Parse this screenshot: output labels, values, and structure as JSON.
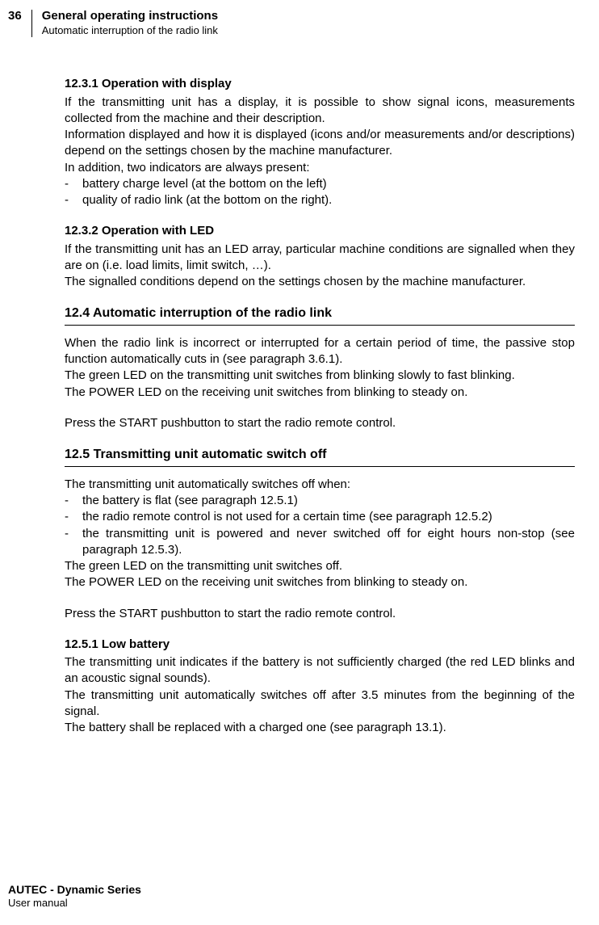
{
  "header": {
    "page_number": "36",
    "title": "General operating instructions",
    "subtitle": "Automatic interruption of the radio link"
  },
  "sections": {
    "s1": {
      "heading": "12.3.1 Operation with display",
      "p1": "If the transmitting unit has a display, it is possible to show signal icons, measurements collected from the machine and their description.",
      "p2": "Information displayed and how it is displayed (icons and/or measurements and/or descriptions) depend on the settings chosen by the machine manufacturer.",
      "p3": "In addition, two indicators are always present:",
      "li1": "battery charge level (at the bottom on the left)",
      "li2": "quality of radio link (at the bottom on the right)."
    },
    "s2": {
      "heading": "12.3.2 Operation with LED",
      "p1": "If the transmitting unit has an LED array, particular machine conditions are signalled when they are on (i.e. load limits, limit switch, …).",
      "p2": "The signalled conditions depend on the settings chosen by the machine manufacturer."
    },
    "s3": {
      "heading": "12.4 Automatic interruption of the radio link",
      "p1": "When the radio link is incorrect or interrupted for a certain period of time, the passive stop function automatically cuts in (see paragraph 3.6.1).",
      "p2": "The green LED on the transmitting unit switches from blinking slowly to fast blinking.",
      "p3": "The POWER LED on the receiving unit switches from blinking to steady on.",
      "p4": "Press the START pushbutton to start the radio remote control."
    },
    "s4": {
      "heading": "12.5 Transmitting unit automatic switch off",
      "p1": "The transmitting unit automatically switches off when:",
      "li1": "the battery is flat (see paragraph 12.5.1)",
      "li2": "the radio remote control is not used for a certain time (see paragraph 12.5.2)",
      "li3": "the transmitting unit is powered and never switched off for eight hours non-stop (see paragraph 12.5.3).",
      "p2": "The green LED on the transmitting unit switches off.",
      "p3": "The POWER LED on the receiving unit switches from blinking to steady on.",
      "p4": "Press the START pushbutton to start the radio remote control."
    },
    "s5": {
      "heading": "12.5.1 Low battery",
      "p1": "The transmitting unit indicates if the battery is not sufficiently charged (the red LED blinks and an acoustic signal sounds).",
      "p2": "The transmitting unit automatically switches off after 3.5 minutes from the beginning of the signal.",
      "p3": "The battery shall be replaced with a charged one (see paragraph 13.1)."
    }
  },
  "list_marker": "-",
  "footer": {
    "title": "AUTEC - Dynamic Series",
    "subtitle": "User manual"
  }
}
